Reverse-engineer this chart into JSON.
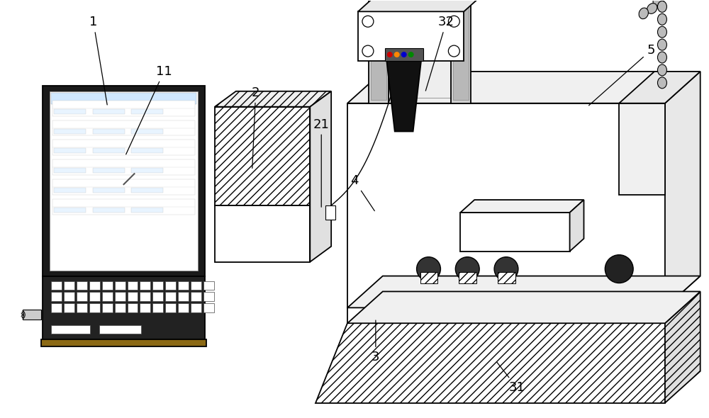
{
  "background_color": "#ffffff",
  "line_color": "#000000",
  "label_fontsize": 13,
  "figsize": [
    10.0,
    5.9
  ],
  "dpi": 100
}
